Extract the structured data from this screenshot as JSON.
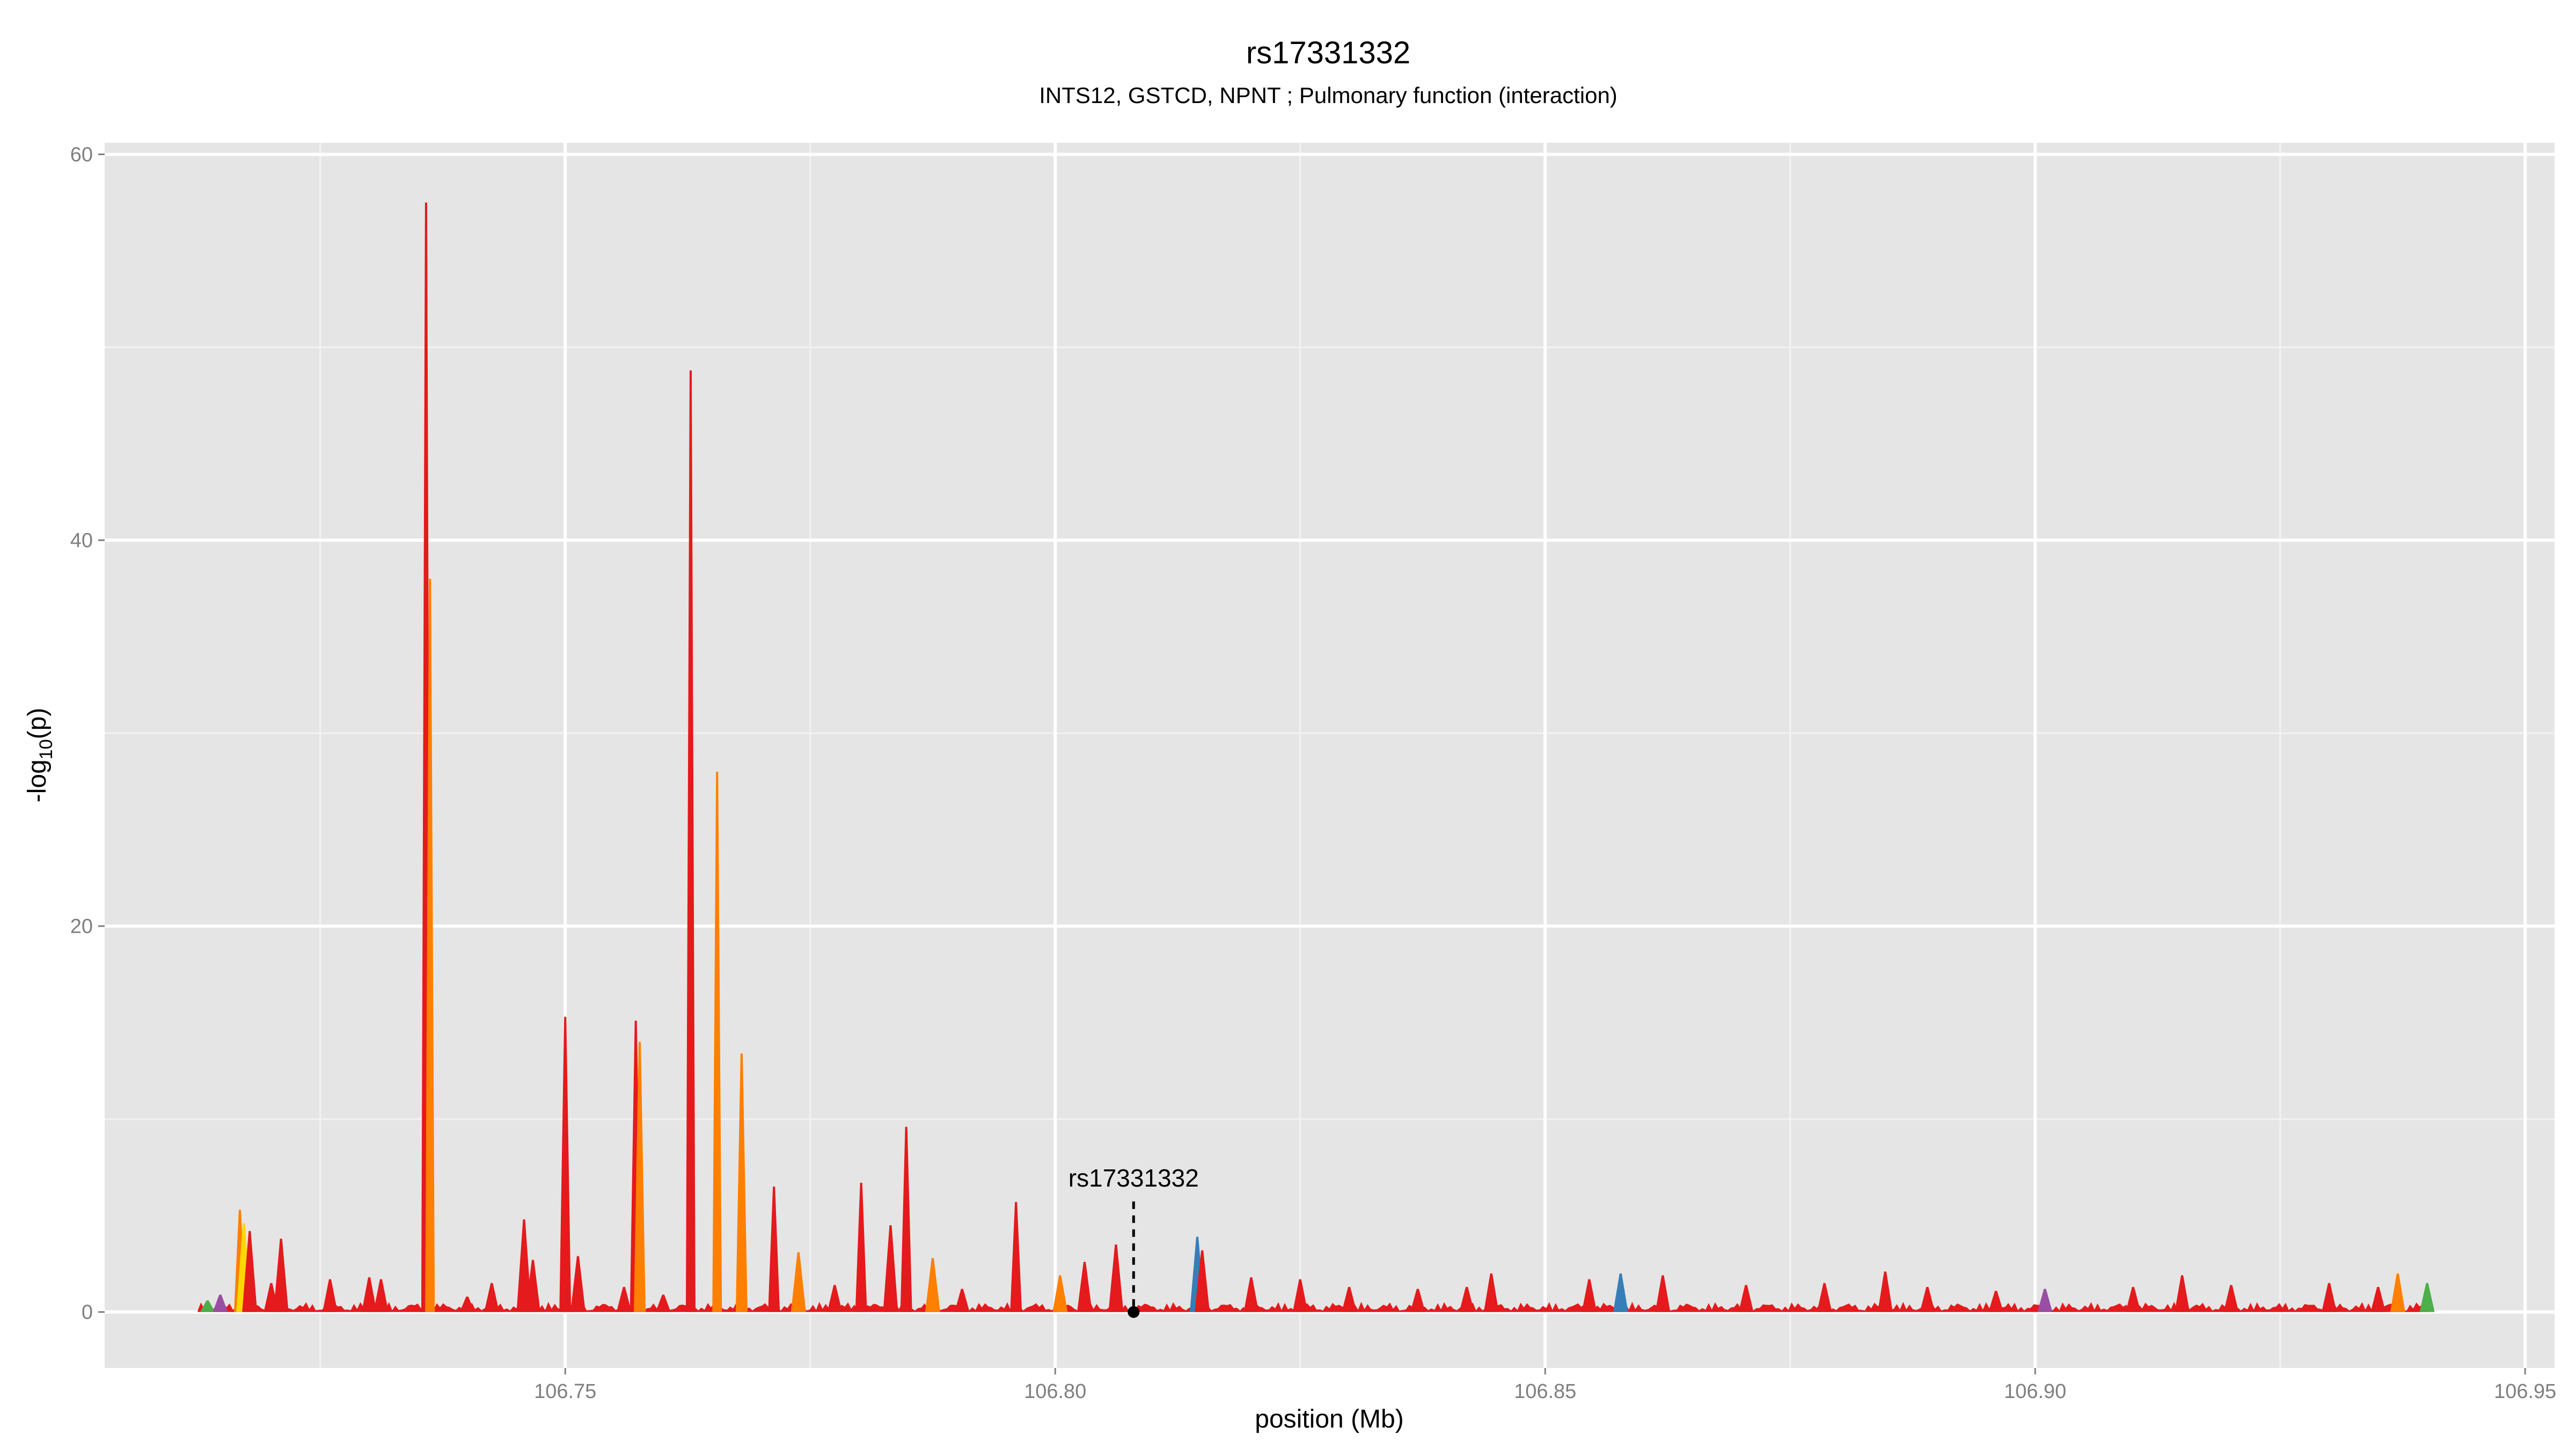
{
  "chart_data": {
    "type": "area",
    "title": "rs17331332",
    "subtitle": "INTS12,  GSTCD,  NPNT ; Pulmonary function (interaction)",
    "xlabel": "position (Mb)",
    "ylabel_main": "-log",
    "ylabel_sub": "10",
    "ylabel_tail": "(p)",
    "xlim": [
      106.703,
      106.953
    ],
    "ylim": [
      -2.9,
      60.6
    ],
    "x_ticks": [
      106.75,
      106.8,
      106.85,
      106.9,
      106.95
    ],
    "x_tick_labels": [
      "106.75",
      "106.80",
      "106.85",
      "106.90",
      "106.95"
    ],
    "y_ticks": [
      0,
      20,
      40,
      60
    ],
    "y_tick_labels": [
      "0",
      "20",
      "40",
      "60"
    ],
    "grid": true,
    "background": "#e5e5e5",
    "colors": {
      "red": "#e41a1c",
      "orange": "#ff7f00",
      "yellow": "#ffd700",
      "blue": "#377eb8",
      "purple": "#984ea3",
      "green": "#4daf4a"
    },
    "peaks": [
      {
        "x": 106.7135,
        "y": 0.6,
        "color": "green"
      },
      {
        "x": 106.7148,
        "y": 0.9,
        "color": "purple"
      },
      {
        "x": 106.7168,
        "y": 5.3,
        "color": "orange"
      },
      {
        "x": 106.7172,
        "y": 4.6,
        "color": "yellow"
      },
      {
        "x": 106.7178,
        "y": 4.2,
        "color": "red"
      },
      {
        "x": 106.72,
        "y": 1.5,
        "color": "red"
      },
      {
        "x": 106.721,
        "y": 3.8,
        "color": "red"
      },
      {
        "x": 106.726,
        "y": 1.7,
        "color": "red"
      },
      {
        "x": 106.73,
        "y": 1.8,
        "color": "red"
      },
      {
        "x": 106.7312,
        "y": 1.7,
        "color": "red"
      },
      {
        "x": 106.7358,
        "y": 57.5,
        "color": "red"
      },
      {
        "x": 106.7362,
        "y": 38.0,
        "color": "orange"
      },
      {
        "x": 106.74,
        "y": 0.8,
        "color": "red"
      },
      {
        "x": 106.7425,
        "y": 1.5,
        "color": "red"
      },
      {
        "x": 106.7458,
        "y": 4.8,
        "color": "red"
      },
      {
        "x": 106.7467,
        "y": 2.7,
        "color": "red"
      },
      {
        "x": 106.75,
        "y": 15.3,
        "color": "red"
      },
      {
        "x": 106.7513,
        "y": 2.9,
        "color": "red"
      },
      {
        "x": 106.756,
        "y": 1.3,
        "color": "red"
      },
      {
        "x": 106.7572,
        "y": 15.1,
        "color": "red"
      },
      {
        "x": 106.7576,
        "y": 14.0,
        "color": "orange"
      },
      {
        "x": 106.76,
        "y": 0.9,
        "color": "red"
      },
      {
        "x": 106.7628,
        "y": 48.8,
        "color": "red"
      },
      {
        "x": 106.7655,
        "y": 28.0,
        "color": "orange"
      },
      {
        "x": 106.768,
        "y": 13.4,
        "color": "orange"
      },
      {
        "x": 106.7713,
        "y": 6.5,
        "color": "red"
      },
      {
        "x": 106.7738,
        "y": 3.1,
        "color": "orange"
      },
      {
        "x": 106.7775,
        "y": 1.4,
        "color": "red"
      },
      {
        "x": 106.7802,
        "y": 6.7,
        "color": "red"
      },
      {
        "x": 106.7832,
        "y": 4.5,
        "color": "red"
      },
      {
        "x": 106.7848,
        "y": 9.6,
        "color": "red"
      },
      {
        "x": 106.7875,
        "y": 2.8,
        "color": "orange"
      },
      {
        "x": 106.7905,
        "y": 1.2,
        "color": "red"
      },
      {
        "x": 106.796,
        "y": 5.7,
        "color": "red"
      },
      {
        "x": 106.8005,
        "y": 1.9,
        "color": "orange"
      },
      {
        "x": 106.803,
        "y": 2.6,
        "color": "red"
      },
      {
        "x": 106.8062,
        "y": 3.5,
        "color": "red"
      },
      {
        "x": 106.8145,
        "y": 3.9,
        "color": "blue"
      },
      {
        "x": 106.815,
        "y": 3.2,
        "color": "red"
      },
      {
        "x": 106.82,
        "y": 1.8,
        "color": "red"
      },
      {
        "x": 106.825,
        "y": 1.7,
        "color": "red"
      },
      {
        "x": 106.83,
        "y": 1.3,
        "color": "red"
      },
      {
        "x": 106.837,
        "y": 1.2,
        "color": "red"
      },
      {
        "x": 106.842,
        "y": 1.3,
        "color": "red"
      },
      {
        "x": 106.8445,
        "y": 2.0,
        "color": "red"
      },
      {
        "x": 106.8545,
        "y": 1.7,
        "color": "red"
      },
      {
        "x": 106.8577,
        "y": 2.0,
        "color": "blue"
      },
      {
        "x": 106.862,
        "y": 1.9,
        "color": "red"
      },
      {
        "x": 106.8705,
        "y": 1.4,
        "color": "red"
      },
      {
        "x": 106.8785,
        "y": 1.5,
        "color": "red"
      },
      {
        "x": 106.8847,
        "y": 2.1,
        "color": "red"
      },
      {
        "x": 106.889,
        "y": 1.3,
        "color": "red"
      },
      {
        "x": 106.896,
        "y": 1.1,
        "color": "red"
      },
      {
        "x": 106.901,
        "y": 1.2,
        "color": "purple"
      },
      {
        "x": 106.91,
        "y": 1.3,
        "color": "red"
      },
      {
        "x": 106.915,
        "y": 1.9,
        "color": "red"
      },
      {
        "x": 106.92,
        "y": 1.4,
        "color": "red"
      },
      {
        "x": 106.93,
        "y": 1.5,
        "color": "red"
      },
      {
        "x": 106.935,
        "y": 1.3,
        "color": "red"
      },
      {
        "x": 106.937,
        "y": 2.0,
        "color": "orange"
      },
      {
        "x": 106.94,
        "y": 1.5,
        "color": "green"
      }
    ],
    "baseline_range": [
      106.7125,
      106.9402
    ],
    "marker": {
      "label": "rs17331332",
      "x": 106.808,
      "y": 0
    }
  }
}
